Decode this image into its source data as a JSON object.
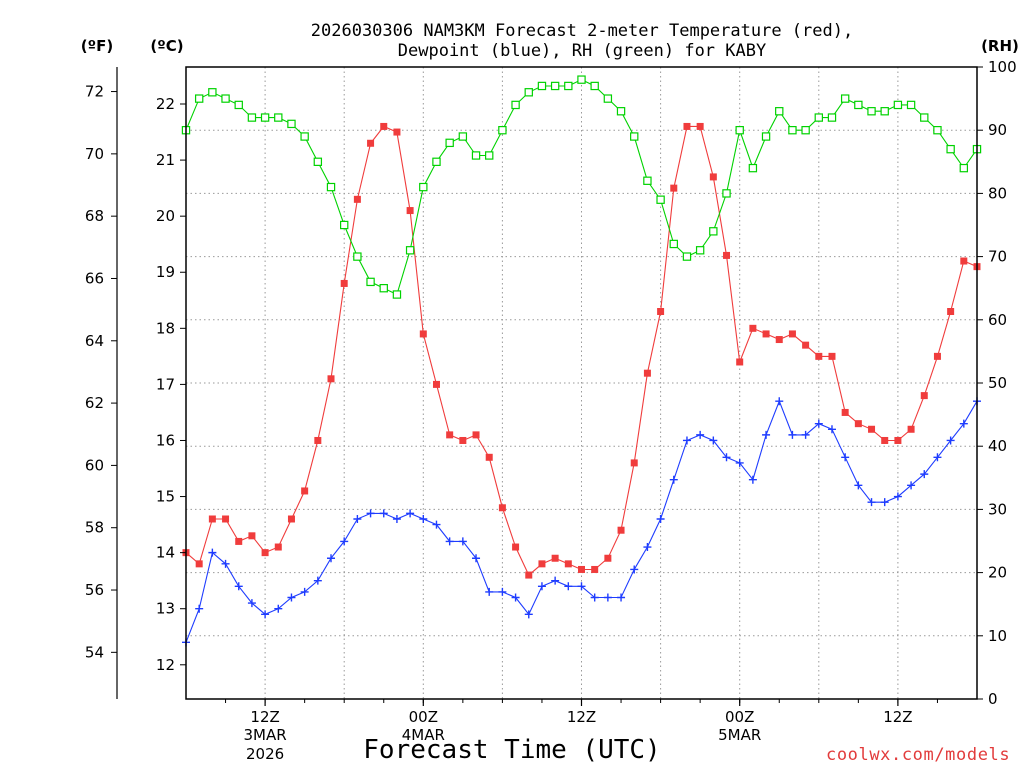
{
  "credit": "coolwx.com/models",
  "colors": {
    "credit": "#e23b3b",
    "axes": "#000000",
    "grid": "#9a9a9a",
    "background": "#ffffff"
  },
  "chart_data": {
    "type": "line",
    "title": [
      "2026030306 NAM3KM Forecast 2-meter Temperature (red),",
      "Dewpoint (blue), RH (green) for KABY"
    ],
    "xlabel": "Forecast Time (UTC)",
    "grid": true,
    "legend": "none",
    "xlim": [
      "2026-03-03T06:00Z",
      "2026-03-05T18:00Z"
    ],
    "xticks": [
      {
        "at": "2026-03-03T12:00Z",
        "labels": [
          "12Z",
          "3MAR",
          "2026"
        ]
      },
      {
        "at": "2026-03-04T00:00Z",
        "labels": [
          "00Z",
          "4MAR"
        ]
      },
      {
        "at": "2026-03-04T12:00Z",
        "labels": [
          "12Z"
        ]
      },
      {
        "at": "2026-03-05T00:00Z",
        "labels": [
          "00Z",
          "5MAR"
        ]
      },
      {
        "at": "2026-03-05T12:00Z",
        "labels": [
          "12Z"
        ]
      }
    ],
    "x": [
      "2026-03-03T06:00Z",
      "2026-03-03T07:00Z",
      "2026-03-03T08:00Z",
      "2026-03-03T09:00Z",
      "2026-03-03T10:00Z",
      "2026-03-03T11:00Z",
      "2026-03-03T12:00Z",
      "2026-03-03T13:00Z",
      "2026-03-03T14:00Z",
      "2026-03-03T15:00Z",
      "2026-03-03T16:00Z",
      "2026-03-03T17:00Z",
      "2026-03-03T18:00Z",
      "2026-03-03T19:00Z",
      "2026-03-03T20:00Z",
      "2026-03-03T21:00Z",
      "2026-03-03T22:00Z",
      "2026-03-03T23:00Z",
      "2026-03-04T00:00Z",
      "2026-03-04T01:00Z",
      "2026-03-04T02:00Z",
      "2026-03-04T03:00Z",
      "2026-03-04T04:00Z",
      "2026-03-04T05:00Z",
      "2026-03-04T06:00Z",
      "2026-03-04T07:00Z",
      "2026-03-04T08:00Z",
      "2026-03-04T09:00Z",
      "2026-03-04T10:00Z",
      "2026-03-04T11:00Z",
      "2026-03-04T12:00Z",
      "2026-03-04T13:00Z",
      "2026-03-04T14:00Z",
      "2026-03-04T15:00Z",
      "2026-03-04T16:00Z",
      "2026-03-04T17:00Z",
      "2026-03-04T18:00Z",
      "2026-03-04T19:00Z",
      "2026-03-04T20:00Z",
      "2026-03-04T21:00Z",
      "2026-03-04T22:00Z",
      "2026-03-04T23:00Z",
      "2026-03-05T00:00Z",
      "2026-03-05T01:00Z",
      "2026-03-05T02:00Z",
      "2026-03-05T03:00Z",
      "2026-03-05T04:00Z",
      "2026-03-05T05:00Z",
      "2026-03-05T06:00Z",
      "2026-03-05T07:00Z",
      "2026-03-05T08:00Z",
      "2026-03-05T09:00Z",
      "2026-03-05T10:00Z",
      "2026-03-05T11:00Z",
      "2026-03-05T12:00Z",
      "2026-03-05T13:00Z",
      "2026-03-05T14:00Z",
      "2026-03-05T15:00Z",
      "2026-03-05T16:00Z",
      "2026-03-05T17:00Z",
      "2026-03-05T18:00Z"
    ],
    "axes": {
      "fahrenheit": {
        "label": "(ºF)",
        "ticks": [
          54,
          56,
          58,
          60,
          62,
          64,
          66,
          68,
          70,
          72
        ]
      },
      "celsius": {
        "label": "(ºC)",
        "ticks": [
          12,
          13,
          14,
          15,
          16,
          17,
          18,
          19,
          20,
          21,
          22
        ],
        "ylim": [
          11.39,
          22.66
        ],
        "series": [
          {
            "color": "#f03c3c",
            "values": [
              14.0,
              13.8,
              14.6,
              14.6,
              14.2,
              14.3,
              14.0,
              14.1,
              14.6,
              15.1,
              16.0,
              17.1,
              18.8,
              20.3,
              21.3,
              21.6,
              21.5,
              20.1,
              17.9,
              17.0,
              16.1,
              16.0,
              16.1,
              15.7,
              14.8,
              14.1,
              13.6,
              13.8,
              13.9,
              13.8,
              13.7,
              13.7,
              13.9,
              14.4,
              15.6,
              17.2,
              18.3,
              20.5,
              21.6,
              21.6,
              20.7,
              19.3,
              17.4,
              18.0,
              17.9,
              17.8,
              17.9,
              17.7,
              17.5,
              17.5,
              16.5,
              16.3,
              16.2,
              16.0,
              16.0,
              16.2,
              16.8,
              17.5,
              18.3,
              19.2,
              19.1
            ]
          },
          {
            "color": "#1e3cff",
            "values": [
              12.4,
              13.0,
              14.0,
              13.8,
              13.4,
              13.1,
              12.9,
              13.0,
              13.2,
              13.3,
              13.5,
              13.9,
              14.2,
              14.6,
              14.7,
              14.7,
              14.6,
              14.7,
              14.6,
              14.5,
              14.2,
              14.2,
              13.9,
              13.3,
              13.3,
              13.2,
              12.9,
              13.4,
              13.5,
              13.4,
              13.4,
              13.2,
              13.2,
              13.2,
              13.7,
              14.1,
              14.6,
              15.3,
              16.0,
              16.1,
              16.0,
              15.7,
              15.6,
              15.3,
              16.1,
              16.7,
              16.1,
              16.1,
              16.3,
              16.2,
              15.7,
              15.2,
              14.9,
              14.9,
              15.0,
              15.2,
              15.4,
              15.7,
              16.0,
              16.3,
              16.7
            ]
          }
        ]
      },
      "rh": {
        "label": "(RH)",
        "ticks": [
          0,
          10,
          20,
          30,
          40,
          50,
          60,
          70,
          80,
          90,
          100
        ],
        "ylim": [
          0,
          100
        ],
        "series": [
          {
            "color": "#00d200",
            "values": [
              90,
              95,
              96,
              95,
              94,
              92,
              92,
              92,
              91,
              89,
              85,
              81,
              75,
              70,
              66,
              65,
              64,
              71,
              81,
              85,
              88,
              89,
              86,
              86,
              90,
              94,
              96,
              97,
              97,
              97,
              98,
              97,
              95,
              93,
              89,
              82,
              79,
              72,
              70,
              71,
              74,
              80,
              90,
              84,
              89,
              93,
              90,
              90,
              92,
              92,
              95,
              94,
              93,
              93,
              94,
              94,
              92,
              90,
              87,
              84,
              87
            ]
          }
        ]
      }
    }
  }
}
